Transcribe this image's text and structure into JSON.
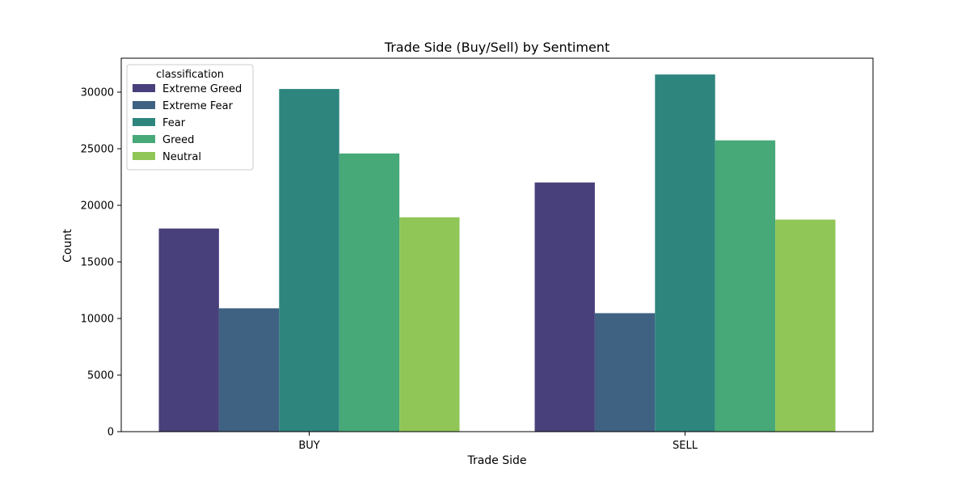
{
  "chart_data": {
    "type": "bar",
    "title": "Trade Side (Buy/Sell) by Sentiment",
    "xlabel": "Trade Side",
    "ylabel": "Count",
    "categories": [
      "BUY",
      "SELL"
    ],
    "ylim": [
      0,
      33000
    ],
    "yticks": [
      0,
      5000,
      10000,
      15000,
      20000,
      25000,
      30000
    ],
    "legend": {
      "title": "classification",
      "position": "top-left"
    },
    "series": [
      {
        "name": "Extreme Greed",
        "color": "#48407a",
        "values": [
          17950,
          22020
        ]
      },
      {
        "name": "Extreme Fear",
        "color": "#3f6283",
        "values": [
          10900,
          10470
        ]
      },
      {
        "name": "Fear",
        "color": "#2e857e",
        "values": [
          30280,
          31560
        ]
      },
      {
        "name": "Greed",
        "color": "#47a878",
        "values": [
          24580,
          25740
        ]
      },
      {
        "name": "Neutral",
        "color": "#90c657",
        "values": [
          18940,
          18740
        ]
      }
    ],
    "grid": false
  }
}
